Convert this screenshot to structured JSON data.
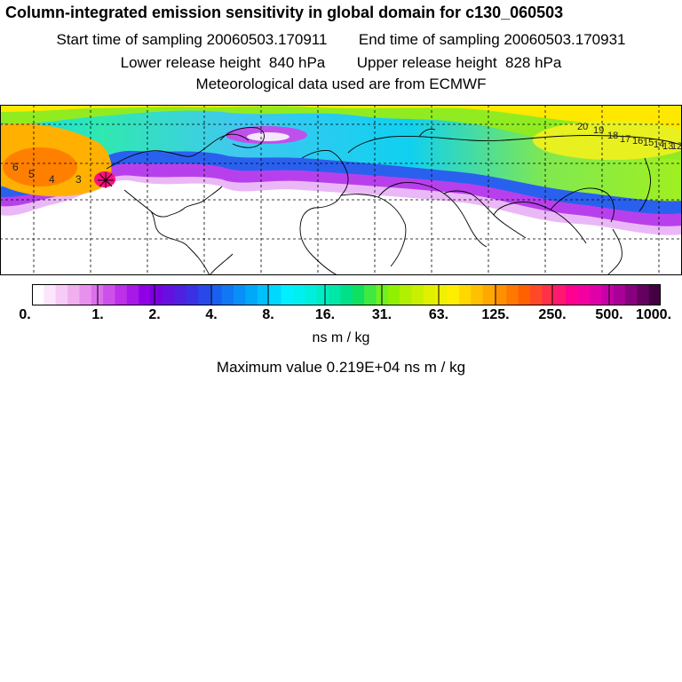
{
  "header": {
    "title": "Column-integrated emission sensitivity in global domain for c130_060503",
    "start_label": "Start time of sampling",
    "start_value": "20060503.170911",
    "end_label": "End time of sampling",
    "end_value": "20060503.170931",
    "lower_label": "Lower release height",
    "lower_value": "840 hPa",
    "upper_label": "Upper release height",
    "upper_value": "828 hPa",
    "met_source": "Meteorological data used are from ECMWF"
  },
  "map": {
    "trajectory_labels_west": [
      "6",
      "5",
      "4",
      "3"
    ],
    "trajectory_labels_east": [
      "20",
      "19",
      "18",
      "17",
      "16",
      "15",
      "14",
      "13",
      "12"
    ]
  },
  "colorbar": {
    "labels": [
      "0.",
      "1.",
      "2.",
      "4.",
      "8.",
      "16.",
      "31.",
      "63.",
      "125.",
      "250.",
      "500.",
      "1000."
    ],
    "colors": [
      "#ffffff",
      "#fbe6fb",
      "#f6ccf6",
      "#f0b0f0",
      "#e890ee",
      "#dc70ec",
      "#cd50ea",
      "#bb30e8",
      "#a818e6",
      "#8f00e6",
      "#7a00e0",
      "#6610e0",
      "#5020e0",
      "#3c30e4",
      "#2848ea",
      "#1a60f0",
      "#1078f4",
      "#0890f8",
      "#00a8fa",
      "#00c0fc",
      "#00d8fe",
      "#00f0ff",
      "#00f0f0",
      "#00eedc",
      "#00ecc4",
      "#00e8a8",
      "#00e088",
      "#10e060",
      "#40e840",
      "#70f020",
      "#90f000",
      "#b0f000",
      "#c8f000",
      "#e0f000",
      "#f0f000",
      "#ffee00",
      "#ffd800",
      "#ffc000",
      "#ffa800",
      "#ff9000",
      "#ff7800",
      "#ff6000",
      "#ff4828",
      "#ff3048",
      "#ff1870",
      "#ff0090",
      "#f400a0",
      "#e000a8",
      "#c800a8",
      "#a80098",
      "#880080",
      "#660060",
      "#440040"
    ],
    "units": "ns m / kg",
    "max_value_text": "Maximum value  0.219E+04 ns m / kg"
  }
}
